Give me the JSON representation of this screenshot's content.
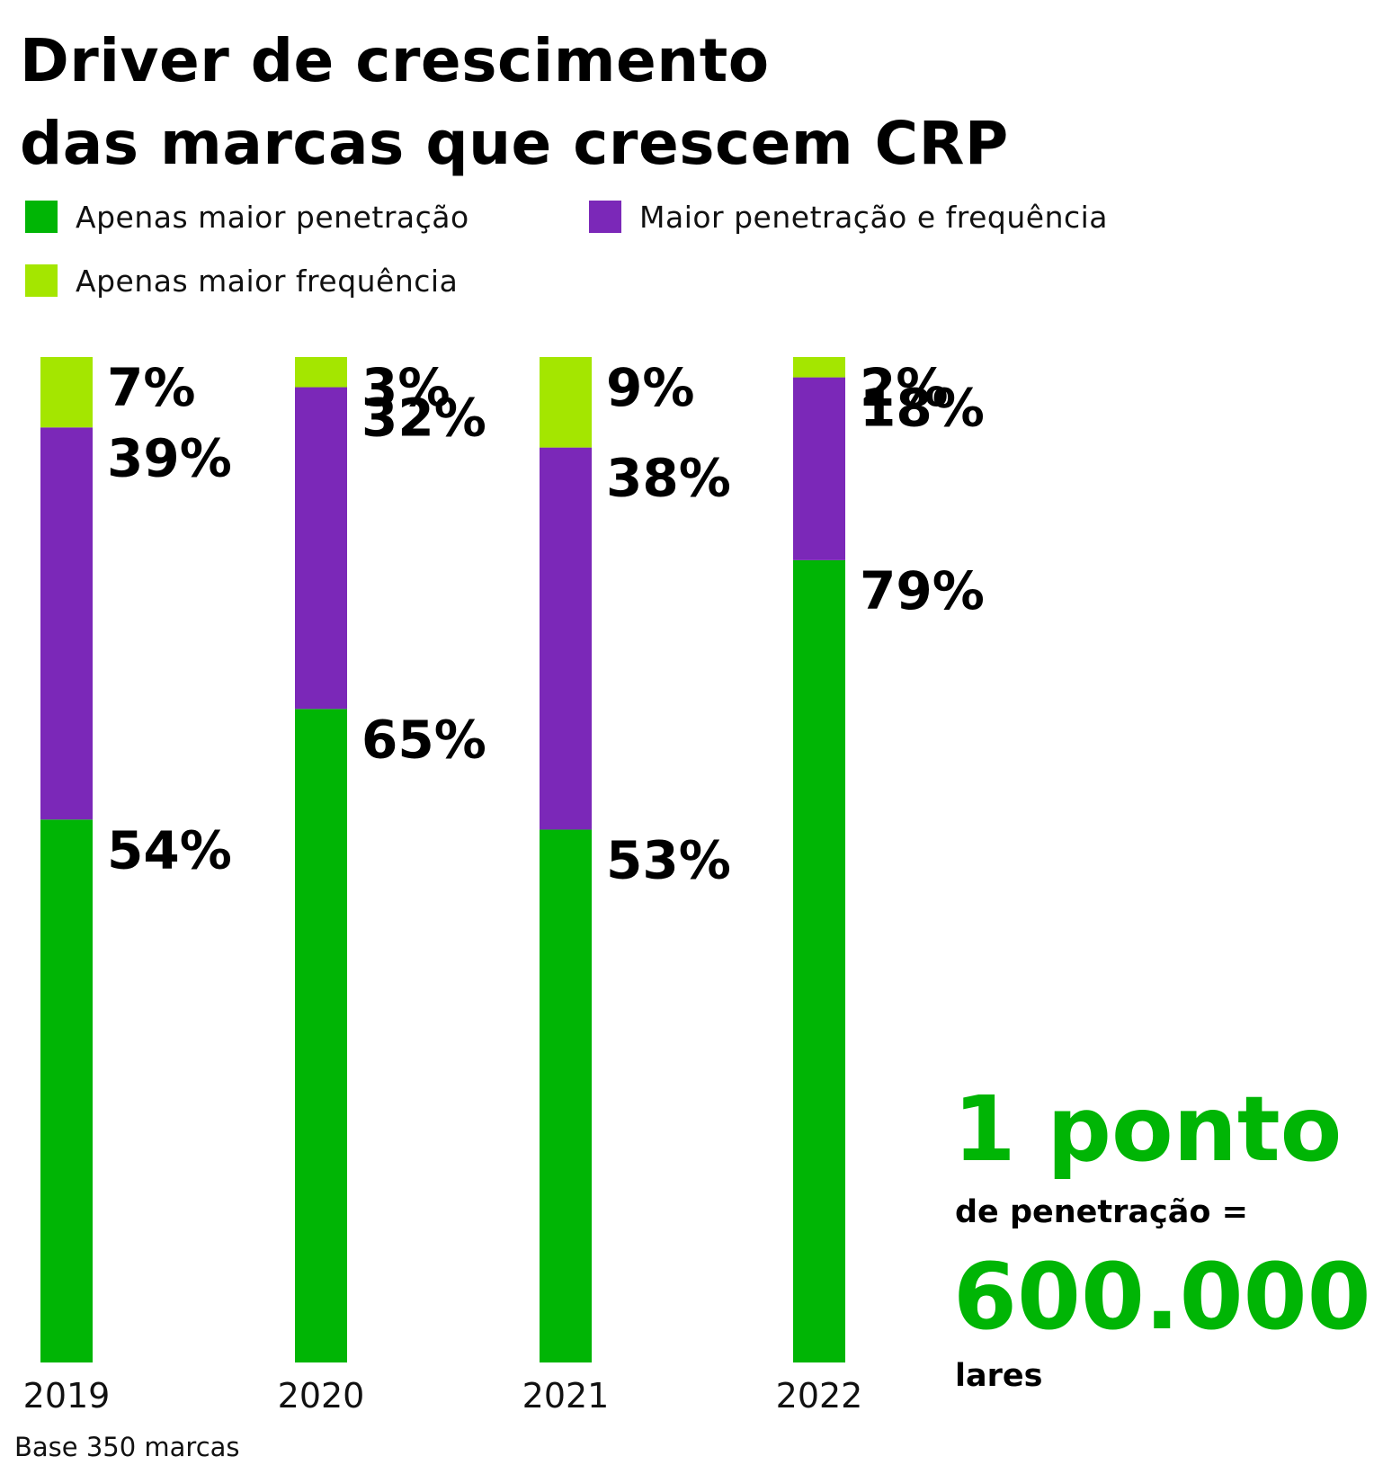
{
  "title_line1": "Driver de crescimento",
  "title_line2": "das marcas que crescem CRP",
  "legend": [
    {
      "label": "Apenas maior penetração",
      "color": "#00b505"
    },
    {
      "label": "Maior penetração e frequência",
      "color": "#7b28b8"
    },
    {
      "label": "Apenas maior frequência",
      "color": "#a4e600"
    }
  ],
  "chart_data": {
    "type": "bar",
    "stacked": true,
    "orientation": "vertical",
    "categories": [
      "2019",
      "2020",
      "2021",
      "2022"
    ],
    "series": [
      {
        "name": "Apenas maior penetração",
        "values": [
          54,
          65,
          53,
          79
        ],
        "labels": [
          "54%",
          "65%",
          "53%",
          "79%"
        ],
        "color": "#00b505"
      },
      {
        "name": "Maior penetração e frequência",
        "values": [
          39,
          32,
          38,
          18
        ],
        "labels": [
          "39%",
          "32%",
          "38%",
          "18%"
        ],
        "color": "#7b28b8"
      },
      {
        "name": "Apenas maior frequência",
        "values": [
          7,
          3,
          9,
          2
        ],
        "labels": [
          "7%",
          "3%",
          "9%",
          "2%"
        ],
        "color": "#a4e600"
      }
    ],
    "ylim": [
      0,
      100
    ],
    "title": "Driver de crescimento das marcas que crescem CRP",
    "xlabel": "",
    "ylabel": "",
    "grid": false,
    "legend_position": "top-left"
  },
  "callout": {
    "value": "1 ponto",
    "subtitle": "de penetração =",
    "amount": "600.000",
    "unit": "lares",
    "color": "#00b505"
  },
  "footnote": "Base 350 marcas"
}
